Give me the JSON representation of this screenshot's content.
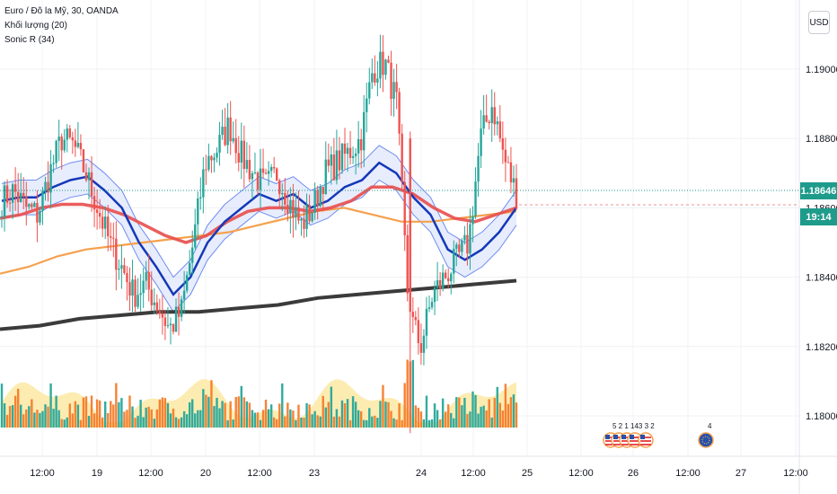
{
  "legend": {
    "symbol": "Euro / Đô la Mỹ, 30, OANDA",
    "volume": "Khối lượng (20)",
    "sonic": "Sonic R (34)"
  },
  "currency_button": "USD",
  "last_price": "1.18646",
  "countdown": "19:14",
  "events_label": "5 2 1 143 3 2",
  "events_label2": "4",
  "colors": {
    "up": "#26a69a",
    "down": "#ef5350",
    "ema_red": "#e84d4d",
    "ema_orange": "#f5a04d",
    "ema_black": "#3b3b3b",
    "ema_blue": "#1438b8",
    "band": "#6f8df0",
    "vol_ma": "#fde9a3"
  },
  "chart_data": {
    "type": "candlestick",
    "title": "Euro / Đô la Mỹ, 30, OANDA",
    "y_ticks": [
      "1.19000",
      "1.18800",
      "1.18600",
      "1.18400",
      "1.18200",
      "1.18000"
    ],
    "ylim": [
      1.1791,
      1.1917
    ],
    "x_ticks": [
      "12:00",
      "19",
      "12:00",
      "20",
      "12:00",
      "23",
      "24",
      "12:00",
      "25",
      "12:00",
      "26",
      "12:00",
      "27",
      "12:00"
    ],
    "series": [
      {
        "name": "EURUSD",
        "close_path": [
          1.1862,
          1.1865,
          1.186,
          1.1858,
          1.187,
          1.188,
          1.1878,
          1.187,
          1.186,
          1.185,
          1.1843,
          1.1835,
          1.1838,
          1.1832,
          1.1825,
          1.183,
          1.185,
          1.1873,
          1.1877,
          1.1884,
          1.1875,
          1.187,
          1.1866,
          1.187,
          1.1862,
          1.1855,
          1.186,
          1.187,
          1.1873,
          1.1876,
          1.188,
          1.19,
          1.1902,
          1.189,
          1.183,
          1.182,
          1.1835,
          1.184,
          1.1845,
          1.185,
          1.188,
          1.189,
          1.1874,
          1.1864
        ]
      },
      {
        "name": "Sonic EMA blue",
        "values": [
          1.1862,
          1.1863,
          1.1863,
          1.1866,
          1.1868,
          1.1869,
          1.1865,
          1.186,
          1.185,
          1.1843,
          1.1835,
          1.184,
          1.185,
          1.1856,
          1.186,
          1.1864,
          1.1862,
          1.1864,
          1.186,
          1.1862,
          1.1866,
          1.1868,
          1.1873,
          1.187,
          1.1863,
          1.1858,
          1.1848,
          1.1845,
          1.1848,
          1.1853,
          1.186
        ]
      },
      {
        "name": "EMA red",
        "values": [
          1.1857,
          1.1858,
          1.186,
          1.1861,
          1.1861,
          1.186,
          1.1858,
          1.1855,
          1.1852,
          1.185,
          1.1852,
          1.1856,
          1.1859,
          1.186,
          1.186,
          1.1859,
          1.186,
          1.1862,
          1.1866,
          1.1866,
          1.1864,
          1.186,
          1.1857,
          1.1856,
          1.1858,
          1.186
        ]
      },
      {
        "name": "EMA orange",
        "values": [
          1.1841,
          1.1843,
          1.1846,
          1.1848,
          1.1849,
          1.185,
          1.1851,
          1.1852,
          1.1853,
          1.1855,
          1.1857,
          1.1859,
          1.186,
          1.1858,
          1.1856,
          1.1856,
          1.1857,
          1.1858,
          1.1859
        ]
      },
      {
        "name": "EMA black",
        "values": [
          1.1825,
          1.1826,
          1.1828,
          1.1829,
          1.183,
          1.183,
          1.1831,
          1.1832,
          1.1834,
          1.1835,
          1.1836,
          1.1837,
          1.1838,
          1.1839
        ]
      }
    ]
  }
}
